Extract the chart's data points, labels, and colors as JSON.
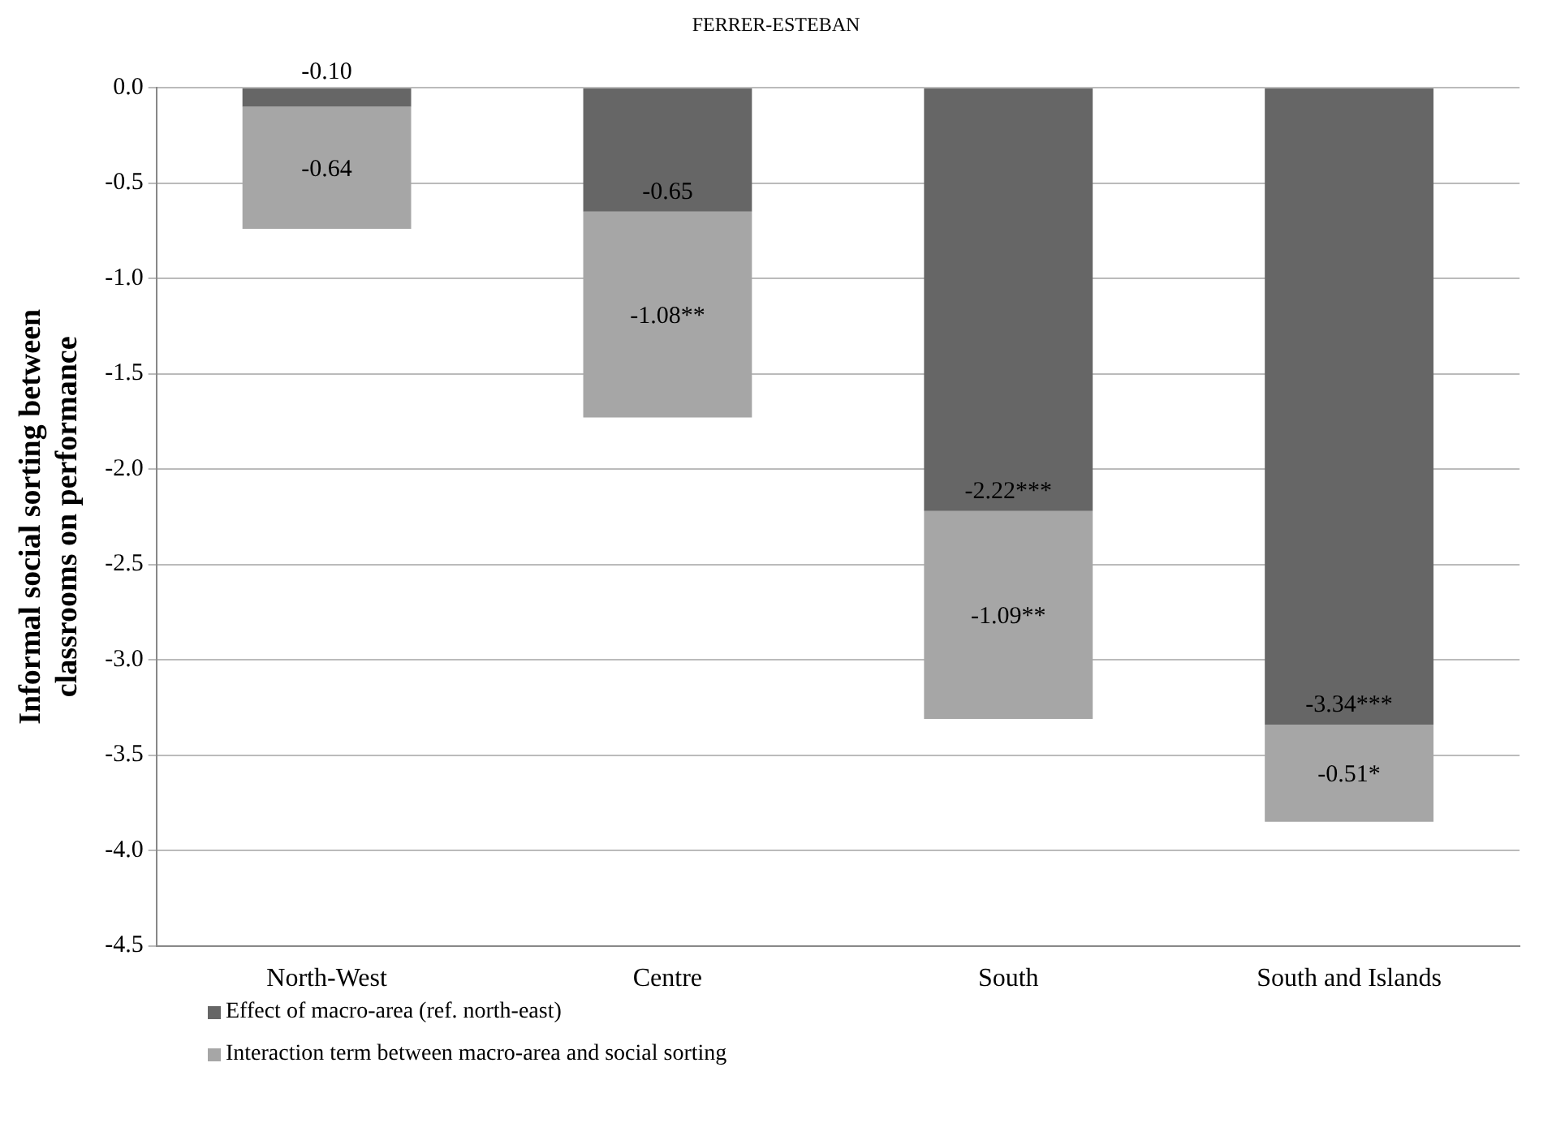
{
  "chart_data": {
    "type": "bar",
    "stacked": true,
    "annotations": [
      "FERRER-ESTEBAN"
    ],
    "ylabel": "Informal social sorting between classrooms on performance",
    "categories": [
      "North-West",
      "Centre",
      "South",
      "South and Islands"
    ],
    "series": [
      {
        "name": "Effect of macro-area (ref. north-east)",
        "color": "#666666",
        "values": [
          -0.1,
          -0.65,
          -2.22,
          -3.34
        ],
        "value_labels": [
          "-0.10",
          "-0.65",
          "-2.22***",
          "-3.34***"
        ]
      },
      {
        "name": "Interaction term between macro-area and social sorting",
        "color": "#a6a6a6",
        "values": [
          -0.64,
          -1.08,
          -1.09,
          -0.51
        ],
        "value_labels": [
          "-0.64",
          "-1.08**",
          "-1.09**",
          "-0.51*"
        ]
      }
    ],
    "ylim": [
      -4.5,
      0
    ],
    "yticks": [
      {
        "value": 0,
        "label": "0.0"
      },
      -0.5,
      {
        "value": -1,
        "label": "-1.0"
      },
      -1.5,
      {
        "value": -2,
        "label": "-2.0"
      },
      -2.5,
      {
        "value": -3,
        "label": "-3.0"
      },
      -3.5,
      {
        "value": -4,
        "label": "-4.0"
      },
      -4.5
    ],
    "grid": "y",
    "legend": "bottom left"
  }
}
